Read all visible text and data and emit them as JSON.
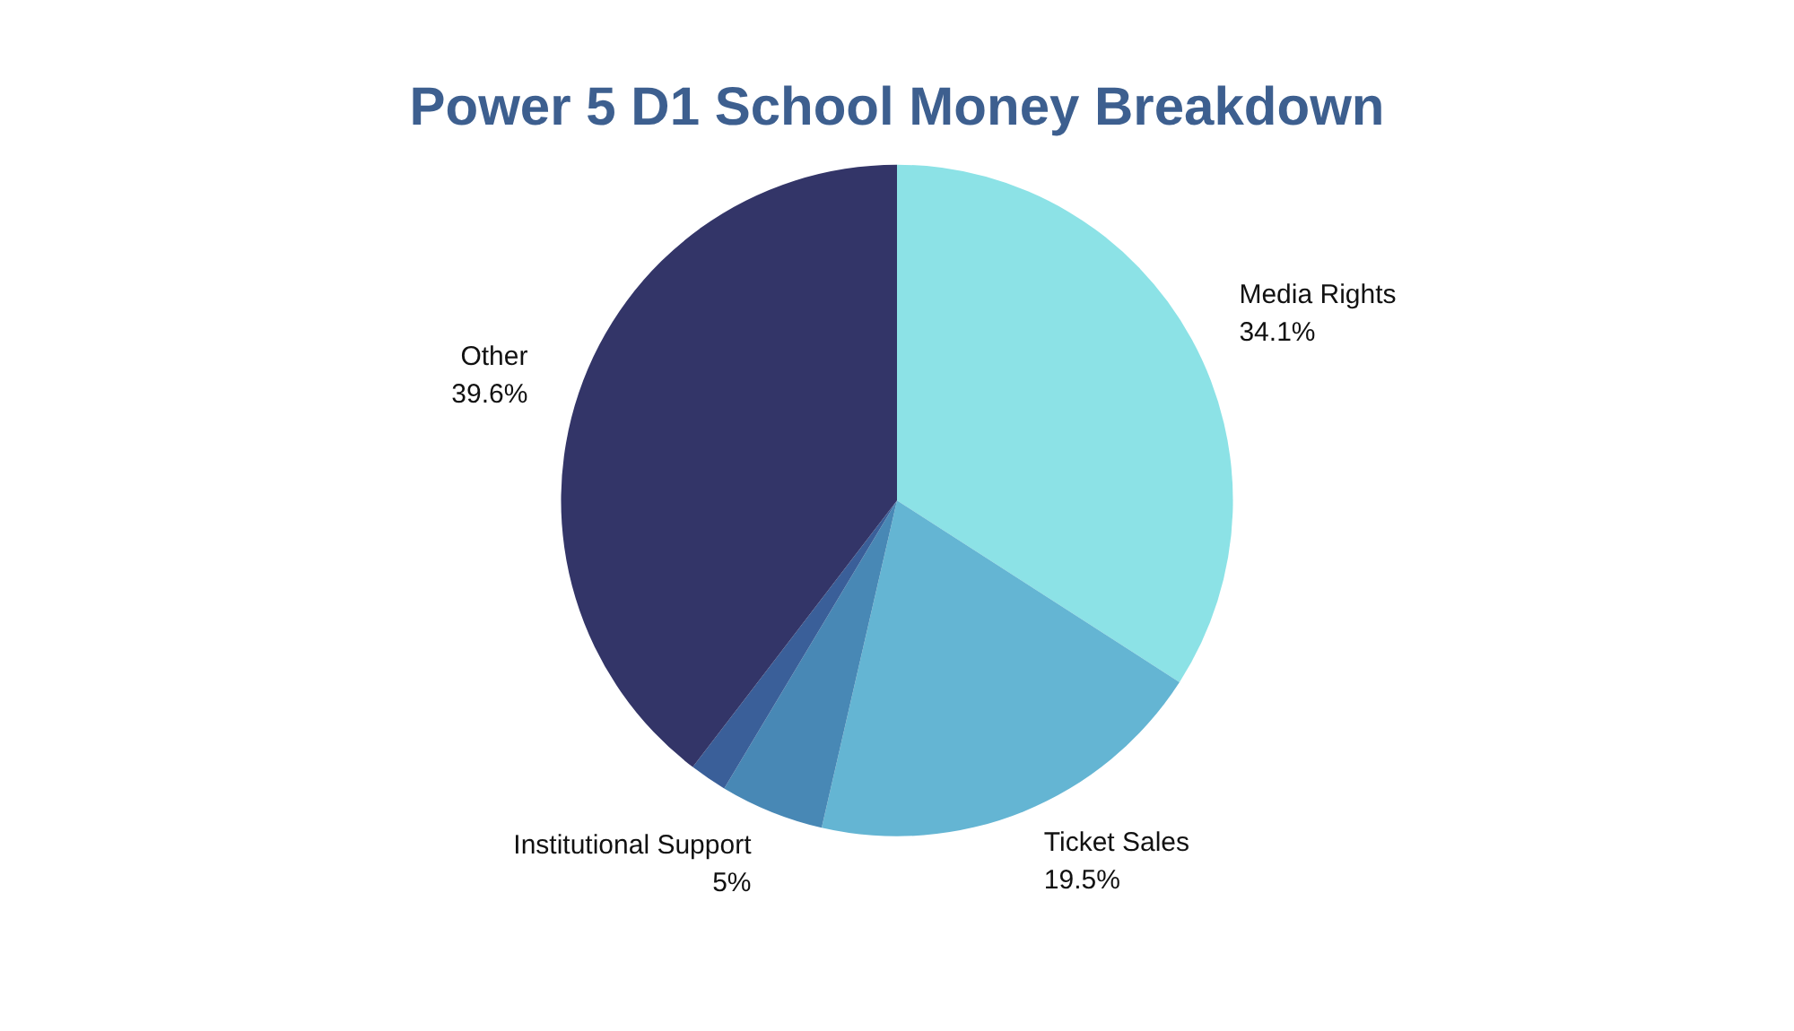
{
  "chart_data": {
    "type": "pie",
    "title": "Power 5 D1 School Money Breakdown",
    "categories": [
      "Media Rights",
      "Ticket Sales",
      "Institutional Support",
      null,
      "Other"
    ],
    "values": [
      34.1,
      19.5,
      5,
      1.8,
      39.6
    ],
    "value_labels": [
      "34.1%",
      "19.5%",
      "5%",
      null,
      "39.6%"
    ],
    "colors": [
      "#8ce2e6",
      "#64b5d3",
      "#4888b5",
      "#3a5f99",
      "#333568"
    ],
    "legend": false
  }
}
